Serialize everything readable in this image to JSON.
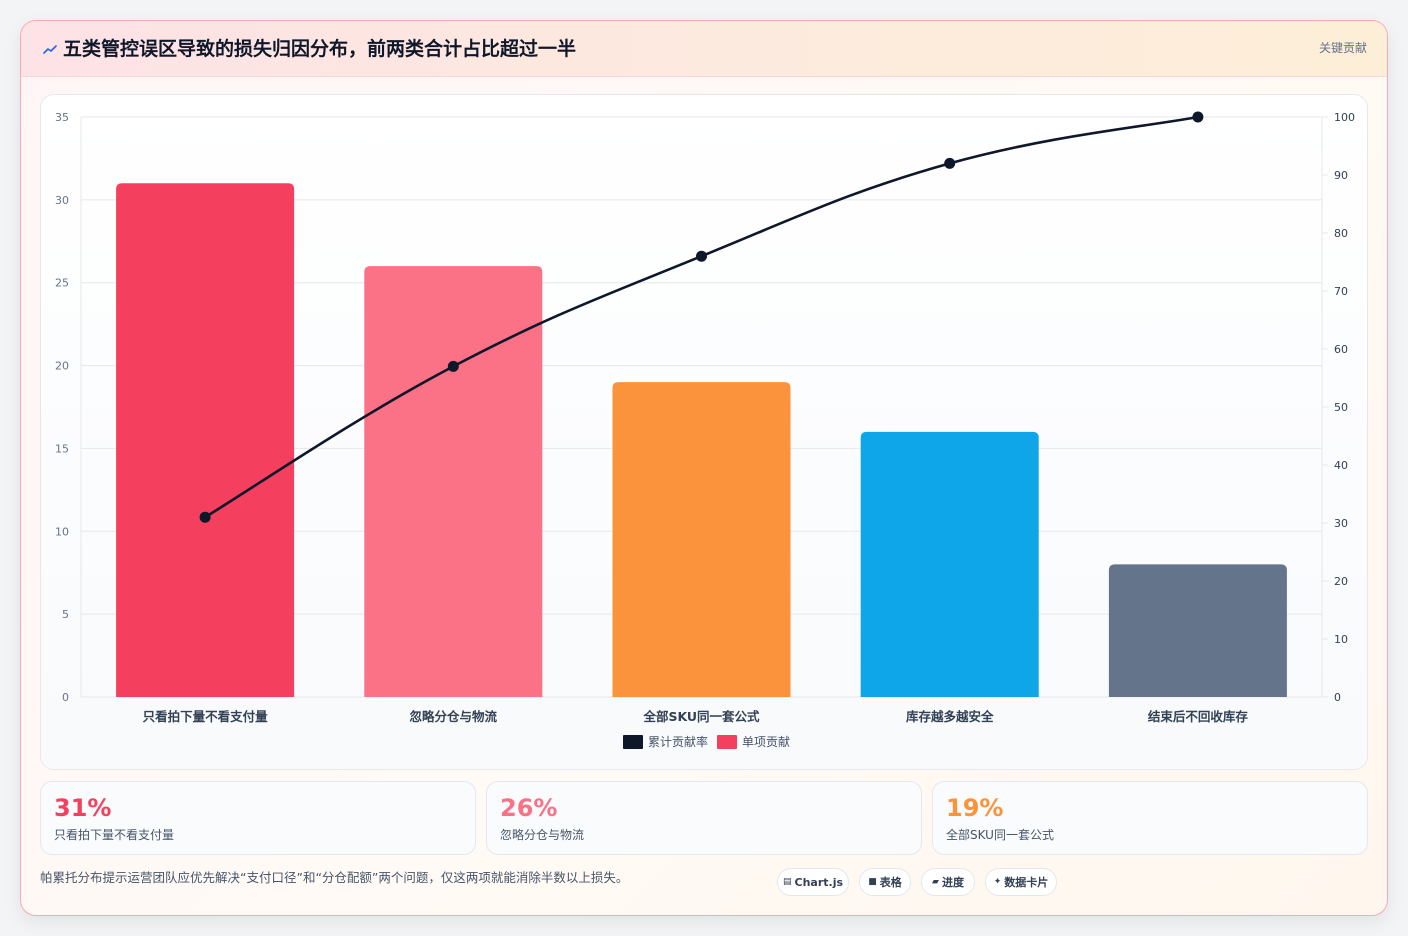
{
  "header": {
    "icon": "chart-line-icon",
    "title": "五类管控误区导致的损失归因分布，前两类合计占比超过一半",
    "tag": "关键贡献"
  },
  "colors": {
    "bars": [
      "#f43f5e",
      "#fb7185",
      "#fb923c",
      "#0ea5e9",
      "#64748b"
    ],
    "line": "#0f172a",
    "grid": "#e5e7eb",
    "tick": "#64748b",
    "category_label": "#334155"
  },
  "chart_data": {
    "type": "bar",
    "categories": [
      "只看拍下量不看支付量",
      "忽略分仓与物流",
      "全部SKU同一套公式",
      "库存越多越安全",
      "结束后不回收库存"
    ],
    "series": [
      {
        "name": "单项贡献",
        "type": "bar",
        "axis": "left",
        "values": [
          31,
          26,
          19,
          16,
          8
        ]
      },
      {
        "name": "累计贡献率",
        "type": "line",
        "axis": "right",
        "values": [
          31,
          57,
          76,
          92,
          100
        ]
      }
    ],
    "y_left": {
      "min": 0,
      "max": 35,
      "step": 5
    },
    "y_right": {
      "min": 0,
      "max": 100,
      "step": 10
    },
    "grid": true,
    "legend": [
      "累计贡献率",
      "单项贡献"
    ],
    "legend_position": "bottom"
  },
  "stats": [
    {
      "value": "31%",
      "label": "只看拍下量不看支付量",
      "color": "#f43f5e"
    },
    {
      "value": "26%",
      "label": "忽略分仓与物流",
      "color": "#fb7185"
    },
    {
      "value": "19%",
      "label": "全部SKU同一套公式",
      "color": "#fb923c"
    }
  ],
  "footer": {
    "note": "帕累托分布提示运营团队应优先解决“支付口径”和“分仓配额”两个问题，仅这两项就能消除半数以上损失。",
    "pills": [
      {
        "icon": "chart-icon",
        "glyph": "▤",
        "label": "Chart.js"
      },
      {
        "icon": "table-icon",
        "glyph": "■",
        "label": "表格"
      },
      {
        "icon": "progress-icon",
        "glyph": "▰",
        "label": "进度"
      },
      {
        "icon": "sparkle-icon",
        "glyph": "✦",
        "label": "数据卡片"
      }
    ]
  }
}
